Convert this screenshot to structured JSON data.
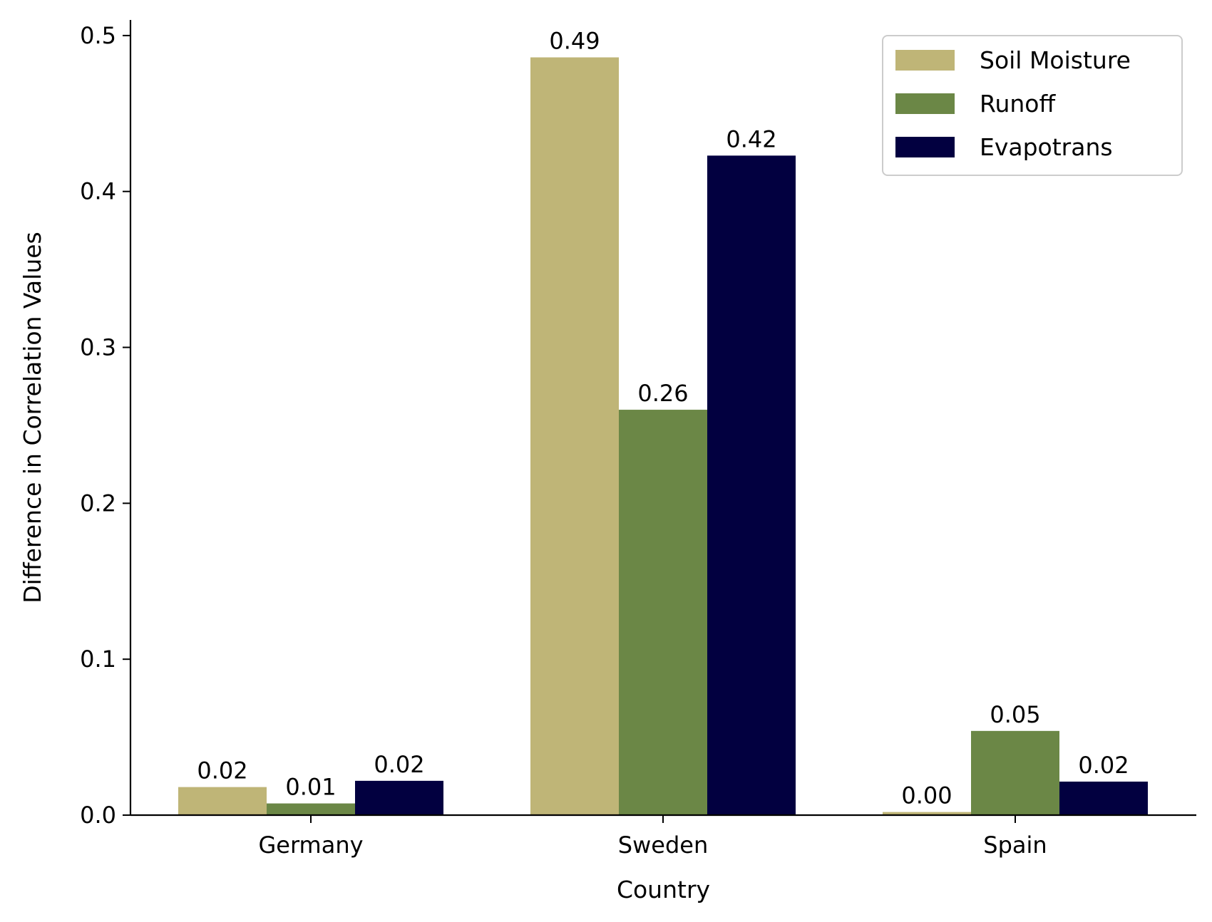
{
  "chart_data": {
    "type": "bar",
    "title": "",
    "xlabel": "Country",
    "ylabel": "Difference in Correlation Values",
    "categories": [
      "Germany",
      "Sweden",
      "Spain"
    ],
    "series": [
      {
        "name": "Soil Moisture",
        "color": "#bfb577",
        "values": [
          0.018,
          0.486,
          0.002
        ],
        "labels": [
          "0.02",
          "0.49",
          "0.00"
        ]
      },
      {
        "name": "Runoff",
        "color": "#6b8746",
        "values": [
          0.0075,
          0.26,
          0.054
        ],
        "labels": [
          "0.01",
          "0.26",
          "0.05"
        ]
      },
      {
        "name": "Evapotrans",
        "color": "#020040",
        "values": [
          0.022,
          0.423,
          0.0215
        ],
        "labels": [
          "0.02",
          "0.42",
          "0.02"
        ]
      }
    ],
    "ylim": [
      0,
      0.51
    ],
    "yticks": [
      "0.0",
      "0.1",
      "0.2",
      "0.3",
      "0.4",
      "0.5"
    ],
    "grid": false,
    "legend_position": "top-right"
  }
}
